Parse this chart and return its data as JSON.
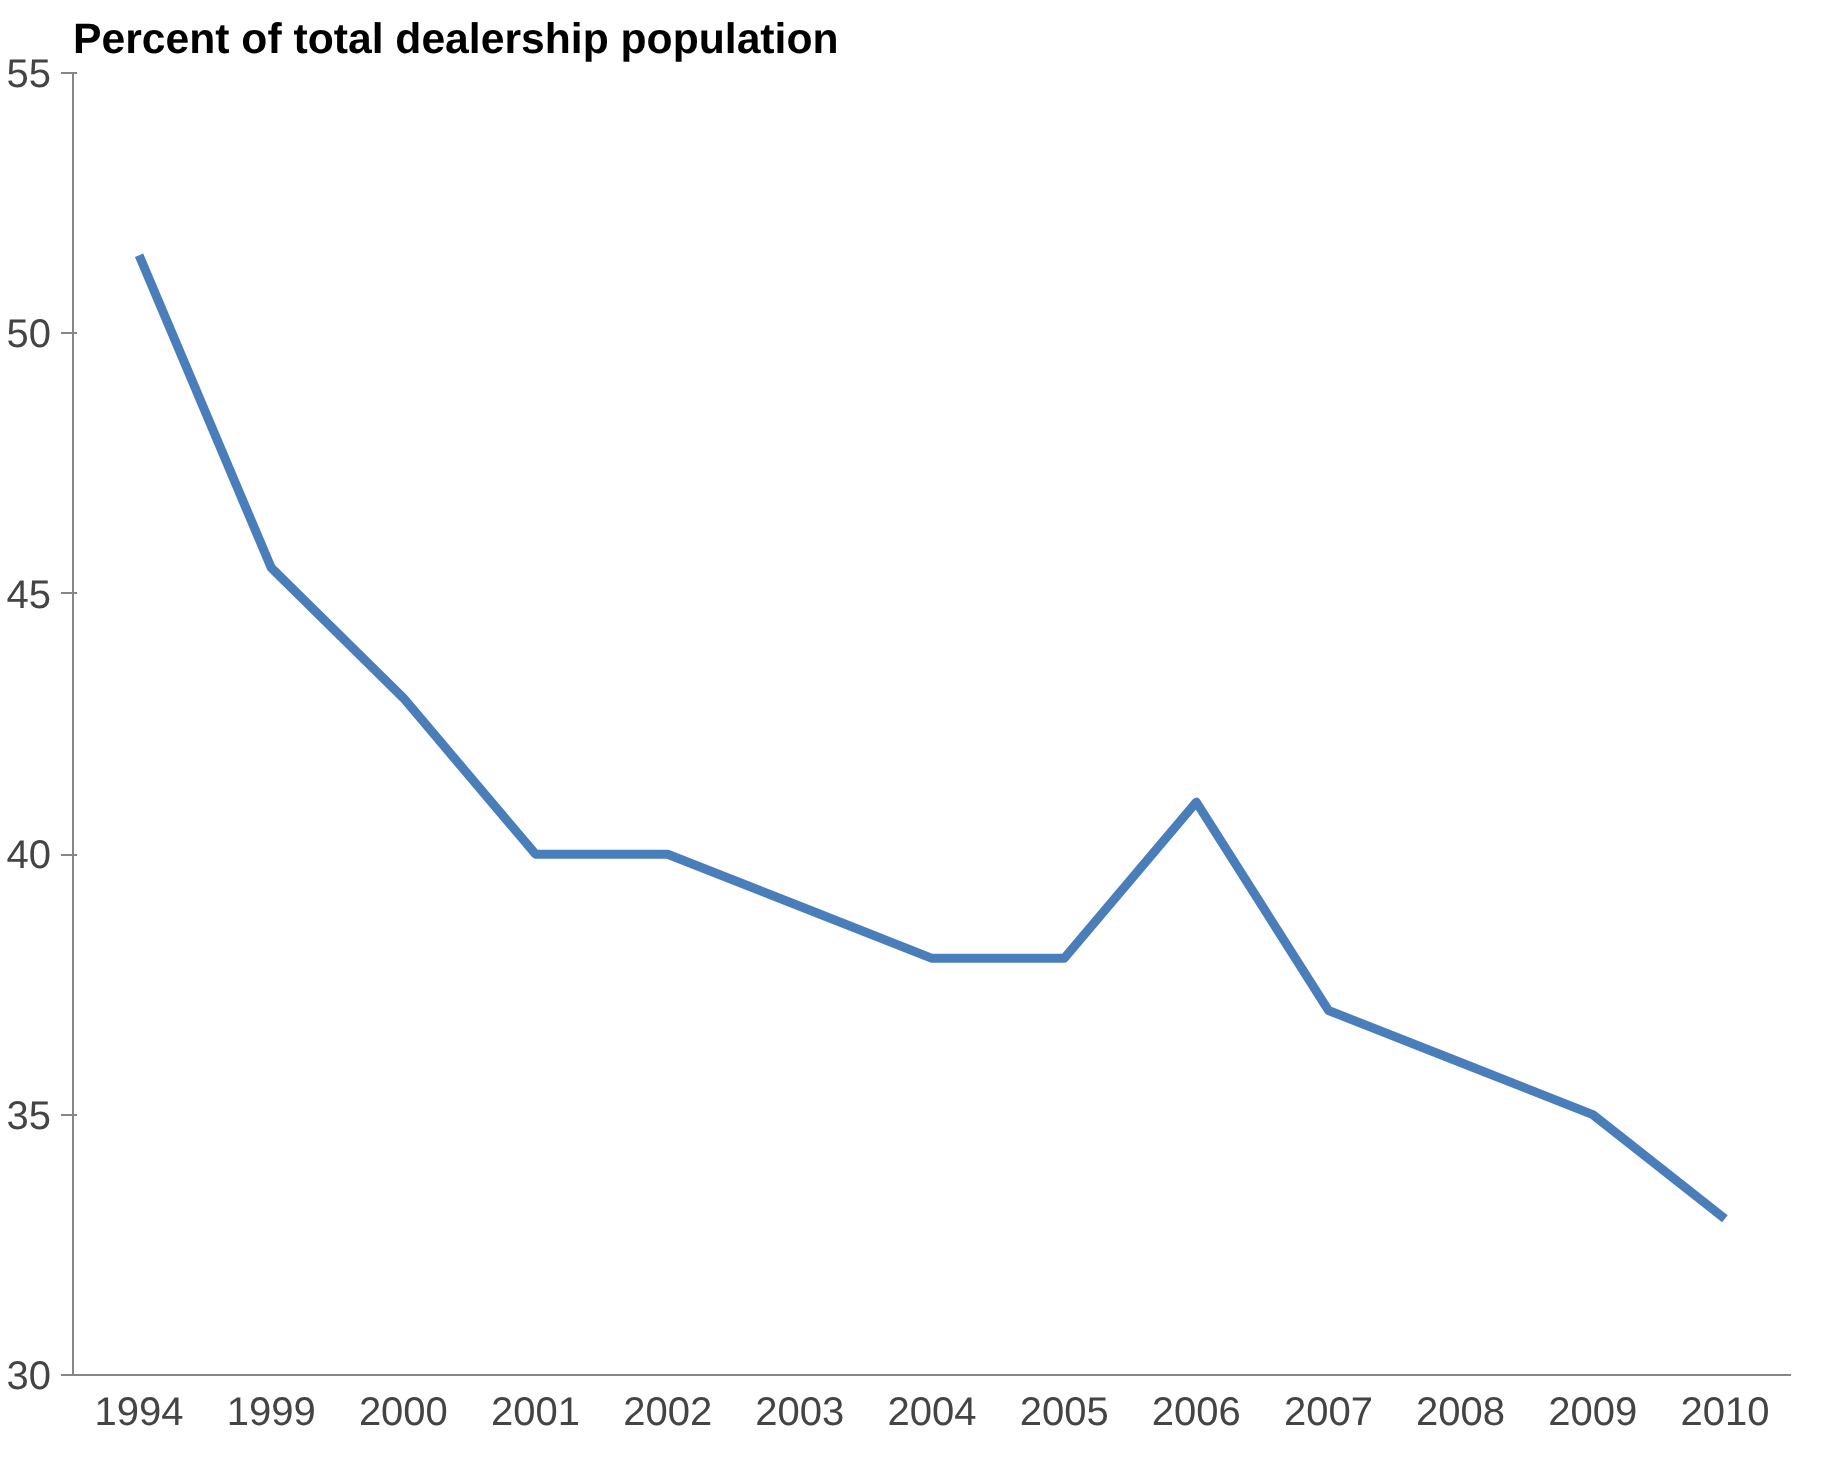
{
  "chart_data": {
    "type": "line",
    "title": "Percent of total dealership population",
    "categories": [
      "1994",
      "1999",
      "2000",
      "2001",
      "2002",
      "2003",
      "2004",
      "2005",
      "2006",
      "2007",
      "2008",
      "2009",
      "2010"
    ],
    "series": [
      {
        "color": "#4a7ebb",
        "values": [
          51.5,
          45.5,
          43,
          40,
          40,
          39,
          38,
          38,
          41,
          37,
          36,
          35,
          33
        ]
      }
    ],
    "ylim": [
      30,
      55
    ],
    "yticks": [
      30,
      35,
      40,
      45,
      50,
      55
    ],
    "grid": false,
    "marker": "none",
    "line_style": "solid"
  }
}
